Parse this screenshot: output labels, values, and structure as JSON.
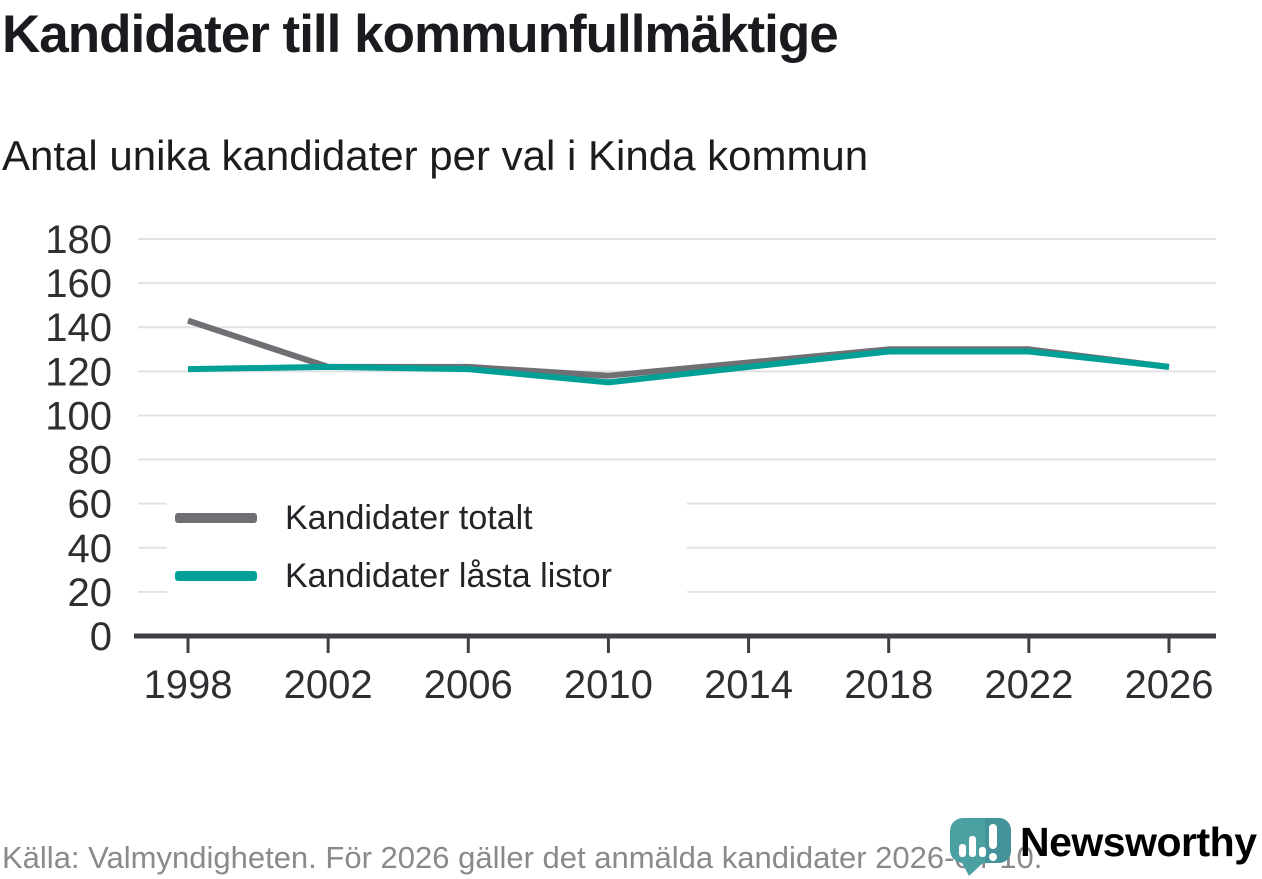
{
  "header": {
    "title": "Kandidater till kommunfullmäktige",
    "subtitle": "Antal unika kandidater per val i Kinda kommun"
  },
  "chart_data": {
    "type": "line",
    "x": [
      1998,
      2002,
      2006,
      2010,
      2014,
      2018,
      2022,
      2026
    ],
    "series": [
      {
        "name": "Kandidater totalt",
        "color": "#6F6F74",
        "values": [
          143,
          122,
          122,
          118,
          124,
          130,
          130,
          122
        ]
      },
      {
        "name": "Kandidater låsta listor",
        "color": "#00A096",
        "values": [
          121,
          122,
          121,
          115,
          122,
          129,
          129,
          122
        ]
      }
    ],
    "ylim": [
      0,
      180
    ],
    "y_tick_step": 20,
    "xlabel": "",
    "ylabel": "",
    "grid": "horizontal",
    "legend_position": "inside-left"
  },
  "footer": {
    "source_text": "Källa: Valmyndigheten. För 2026 gäller det anmälda kandidater 2026-04-10."
  },
  "logo": {
    "text": "Newsworthy",
    "icon": "newsworthy-speech-bubble-bar-chart-icon",
    "wordmark_color": "#3A9C9C",
    "icon_color": "#4BA1A1",
    "icon_shade_color": "#44939A"
  },
  "colors": {
    "axis": "#3F3F44",
    "grid": "#E2E2E2",
    "tick_label": "#2E2E33",
    "footer_text": "#8A8A8E"
  }
}
